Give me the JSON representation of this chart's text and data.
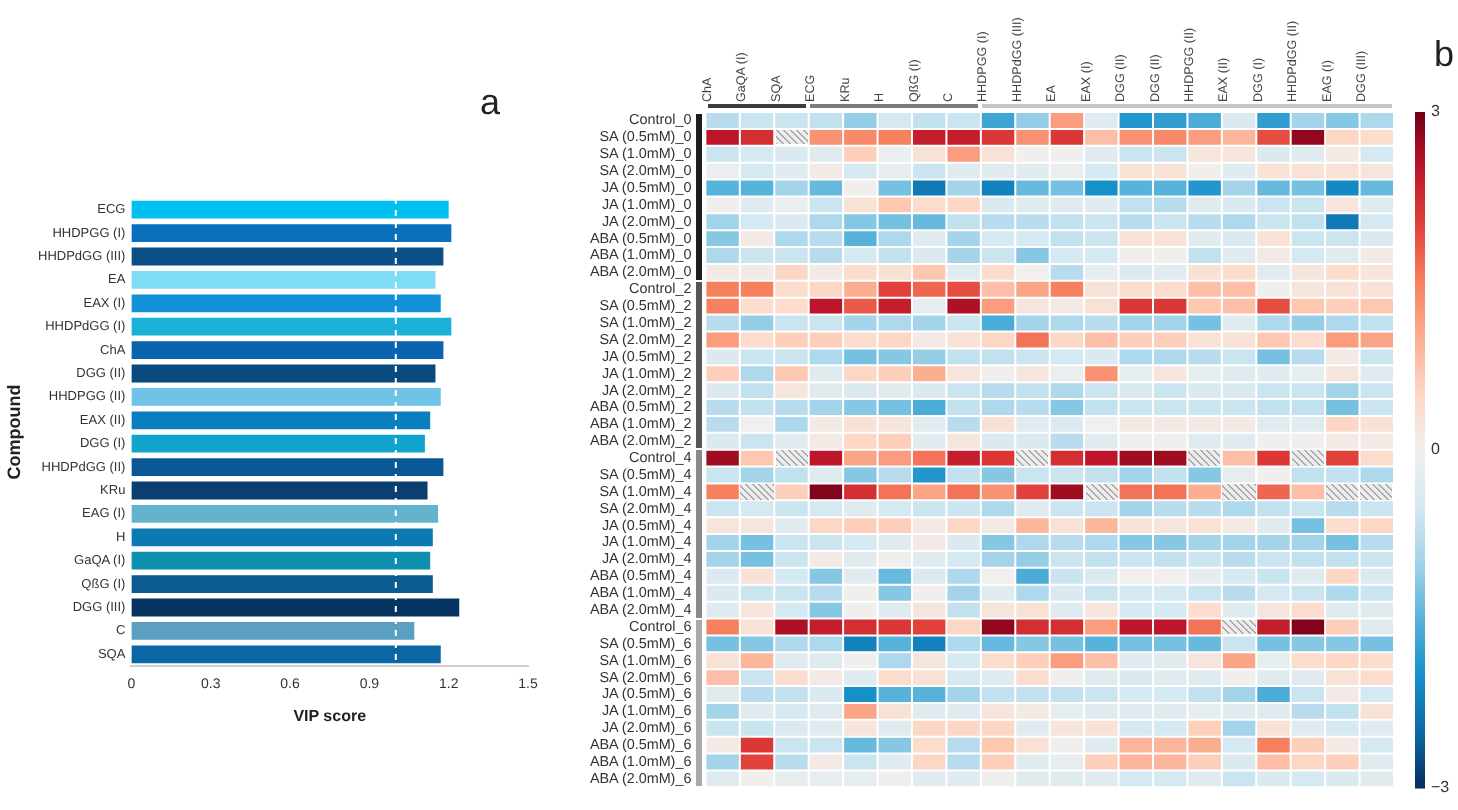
{
  "chart_data": [
    {
      "type": "bar",
      "orientation": "horizontal",
      "annotations": [
        "a"
      ],
      "xlabel": "VIP score",
      "ylabel": "Compound",
      "categories": [
        "ECG",
        "HHDPGG (I)",
        "HHDPdGG (III)",
        "EA",
        "EAX (I)",
        "HHDPdGG (I)",
        "ChA",
        "DGG (II)",
        "HHDPGG (II)",
        "EAX (II)",
        "DGG (I)",
        "HHDPdGG (II)",
        "KRu",
        "EAG (I)",
        "H",
        "GaQA (I)",
        "QßG (I)",
        "DGG (III)",
        "C",
        "SQA"
      ],
      "values": [
        1.2,
        1.21,
        1.18,
        1.15,
        1.17,
        1.21,
        1.18,
        1.15,
        1.17,
        1.13,
        1.11,
        1.18,
        1.12,
        1.16,
        1.14,
        1.13,
        1.14,
        1.24,
        1.07,
        1.17
      ],
      "colors": [
        "#00c0ef",
        "#0a6fbd",
        "#0b4f86",
        "#7fdcf5",
        "#1290d8",
        "#1ab0d8",
        "#0a63ad",
        "#0a4a7e",
        "#6fc3e6",
        "#0a7fc0",
        "#11a3cc",
        "#0a5798",
        "#0b3f72",
        "#64b3cc",
        "#0c79b3",
        "#0e8fb0",
        "#0b5a92",
        "#063461",
        "#5b9fc3",
        "#0b66a6"
      ],
      "xlim": [
        0,
        1.5
      ],
      "xticks": [
        0,
        0.3,
        0.6,
        0.9,
        1.2,
        1.5
      ],
      "ref_lines": [
        {
          "axis": "x",
          "value": 1.0,
          "color": "#ffffff",
          "line_style": "dashed"
        }
      ]
    },
    {
      "type": "heatmap",
      "annotations": [
        "b"
      ],
      "categories": [
        "ChA",
        "GaQA (I)",
        "SQA",
        "ECG",
        "KRu",
        "H",
        "QßG (I)",
        "C",
        "HHDPGG (I)",
        "HHDPdGG (III)",
        "EA",
        "EAX (I)",
        "DGG (II)",
        "DGG (II)",
        "HHDPGG (II)",
        "EAX (II)",
        "DGG (I)",
        "HHDPdGG (II)",
        "EAG (I)",
        "DGG (III)"
      ],
      "y_categories": [
        "Control_0",
        "SA (0.5mM)_0",
        "SA (1.0mM)_0",
        "SA (2.0mM)_0",
        "JA (0.5mM)_0",
        "JA (1.0mM)_0",
        "JA (2.0mM)_0",
        "ABA (0.5mM)_0",
        "ABA (1.0mM)_0",
        "ABA (2.0mM)_0",
        "Control_2",
        "SA (0.5mM)_2",
        "SA (1.0mM)_2",
        "SA (2.0mM)_2",
        "JA (0.5mM)_2",
        "JA (1.0mM)_2",
        "JA (2.0mM)_2",
        "ABA (0.5mM)_2",
        "ABA (1.0mM)_2",
        "ABA (2.0mM)_2",
        "Control_4",
        "SA (0.5mM)_4",
        "SA (1.0mM)_4",
        "SA (2.0mM)_4",
        "JA (0.5mM)_4",
        "JA (1.0mM)_4",
        "JA (2.0mM)_4",
        "ABA (0.5mM)_4",
        "ABA (1.0mM)_4",
        "ABA (2.0mM)_4",
        "Control_6",
        "SA (0.5mM)_6",
        "SA (1.0mM)_6",
        "SA (2.0mM)_6",
        "JA (0.5mM)_6",
        "JA (1.0mM)_6",
        "JA (2.0mM)_6",
        "ABA (0.5mM)_6",
        "ABA (1.0mM)_6",
        "ABA (2.0mM)_6"
      ],
      "cells": [
        [
          -0.8,
          -0.6,
          -0.6,
          -0.7,
          -1.1,
          -0.5,
          -0.7,
          -0.6,
          -1.7,
          -1.1,
          1.2,
          -0.3,
          -1.9,
          -1.8,
          -1.6,
          -0.4,
          -1.8,
          -1.0,
          -1.2,
          -0.9
        ],
        [
          2.5,
          2.2,
          null,
          1.3,
          1.4,
          1.5,
          2.4,
          2.4,
          2.1,
          1.3,
          2.1,
          0.8,
          1.3,
          1.4,
          1.2,
          0.9,
          1.9,
          2.8,
          0.5,
          0.4
        ],
        [
          -0.6,
          -0.5,
          -0.4,
          -0.3,
          0.6,
          -0.1,
          0.3,
          1.2,
          0.3,
          0,
          0,
          -0.3,
          -0.6,
          -0.6,
          0.2,
          0.2,
          -0.4,
          -0.3,
          0.1,
          -0.5
        ],
        [
          -0.1,
          -0.5,
          -0.3,
          0.1,
          -0.5,
          -0.2,
          -0.6,
          -0.3,
          -0.3,
          -0.3,
          -0.1,
          -0.5,
          0.3,
          0.3,
          0,
          -0.3,
          0.3,
          0.3,
          0.3,
          0.2
        ],
        [
          -1.5,
          -1.5,
          -1.0,
          -1.4,
          0,
          -1.3,
          -2.3,
          -1.0,
          -2.2,
          -1.4,
          -1.3,
          -2.0,
          -1.5,
          -1.5,
          -1.9,
          -1.0,
          -1.4,
          -1.3,
          -2.1,
          -1.4
        ],
        [
          0,
          -0.3,
          -0.1,
          -0.6,
          0.3,
          0.7,
          0.4,
          0.5,
          -0.4,
          -0.3,
          -0.3,
          -0.3,
          -0.7,
          -0.8,
          -0.3,
          -0.4,
          -0.6,
          -0.6,
          0.2,
          -0.3
        ],
        [
          -1.0,
          -0.5,
          -0.4,
          -0.9,
          -1.2,
          -1.3,
          -1.4,
          -0.7,
          -0.8,
          -0.8,
          -0.7,
          -0.6,
          -0.8,
          -0.6,
          -0.8,
          -0.9,
          -0.6,
          -0.7,
          -2.3,
          -0.5
        ],
        [
          -1.2,
          0.1,
          -0.9,
          -0.8,
          -1.5,
          -0.9,
          -0.3,
          -1.0,
          -0.5,
          -0.5,
          -0.7,
          -0.6,
          0.3,
          0.3,
          -0.3,
          -0.4,
          0.3,
          -0.6,
          -0.6,
          -0.4
        ],
        [
          -0.9,
          -0.6,
          -0.6,
          -0.8,
          -0.5,
          -0.7,
          -0.4,
          -1.0,
          -0.6,
          -1.2,
          -0.5,
          -0.5,
          0,
          0,
          -0.7,
          -0.3,
          0.1,
          -0.5,
          -0.3,
          0.1
        ],
        [
          0.1,
          0.1,
          0.5,
          0.1,
          0.4,
          0.3,
          0.7,
          -0.3,
          0.4,
          0,
          -0.8,
          -0.2,
          -0.4,
          -0.3,
          0.3,
          0.4,
          -0.3,
          0.2,
          0.4,
          0.2
        ],
        [
          1.5,
          1.5,
          0.4,
          0.5,
          1.0,
          2.0,
          1.7,
          1.9,
          0.8,
          1.1,
          1.5,
          0.3,
          0.4,
          0.4,
          0.8,
          0.8,
          0,
          0.2,
          0.3,
          0.3
        ],
        [
          1.5,
          0.4,
          0.4,
          2.5,
          1.8,
          2.4,
          -0.2,
          2.6,
          1.2,
          0.2,
          0.1,
          0.3,
          2.1,
          2.1,
          0.7,
          0.8,
          1.9,
          0.7,
          0.6,
          0.7
        ],
        [
          -0.8,
          -1.1,
          -0.6,
          -0.6,
          -1.0,
          -0.9,
          -1.0,
          -0.6,
          -1.6,
          -1.0,
          -0.9,
          -0.8,
          -1.0,
          -1.0,
          -1.3,
          -0.3,
          -0.9,
          -1.1,
          -0.9,
          -0.7
        ],
        [
          1.2,
          0.4,
          0.6,
          0.6,
          0.4,
          0.5,
          0.1,
          0.3,
          0.5,
          1.6,
          0.5,
          0.8,
          0.6,
          0.6,
          0.3,
          0.3,
          0.7,
          0.4,
          1.2,
          1.1
        ],
        [
          -0.4,
          -0.6,
          -0.6,
          -0.9,
          -1.3,
          -1.2,
          -1.1,
          -0.7,
          -0.7,
          -0.6,
          -0.5,
          -0.4,
          -0.9,
          -0.9,
          -0.8,
          -0.6,
          -1.3,
          -0.8,
          0.1,
          -0.6
        ],
        [
          0.6,
          -0.9,
          0.7,
          -0.3,
          0.5,
          0.6,
          1.0,
          0.2,
          0,
          0.2,
          -0.1,
          1.3,
          -0.2,
          0.2,
          -0.2,
          -0.3,
          -0.3,
          -0.2,
          0.2,
          -0.3
        ],
        [
          -0.4,
          -0.7,
          0.2,
          -0.3,
          -0.4,
          -0.3,
          -0.4,
          -0.6,
          -0.8,
          -0.7,
          -0.9,
          -0.6,
          -0.4,
          -0.6,
          -0.4,
          -0.4,
          -0.6,
          -0.6,
          -1.0,
          -0.6
        ],
        [
          -0.8,
          -0.7,
          -0.8,
          -1.0,
          -1.2,
          -1.3,
          -1.6,
          -0.7,
          -0.9,
          -0.8,
          -1.2,
          -0.7,
          -0.6,
          -0.6,
          -0.6,
          -0.6,
          -0.7,
          -0.7,
          -1.3,
          -0.6
        ],
        [
          -0.8,
          0,
          -0.9,
          0.1,
          0.3,
          0.2,
          -0.3,
          -0.8,
          0.3,
          -0.3,
          -0.4,
          0,
          0.1,
          0.1,
          0.1,
          0.1,
          -0.3,
          -0.3,
          0.5,
          0.3
        ],
        [
          -0.4,
          -0.6,
          -0.3,
          0.1,
          0.5,
          0.6,
          -0.3,
          0.2,
          -0.4,
          -0.4,
          -0.8,
          -0.3,
          0,
          0,
          -0.3,
          -0.3,
          0,
          0,
          0.1,
          0.1
        ],
        [
          2.7,
          0.7,
          null,
          2.5,
          1.1,
          1.2,
          1.6,
          2.4,
          2.1,
          null,
          2.2,
          2.5,
          2.7,
          2.7,
          null,
          0.8,
          2.1,
          null,
          2.0,
          0.4
        ],
        [
          -0.6,
          -1.0,
          -0.7,
          -0.3,
          -1.2,
          -0.8,
          -1.9,
          -0.7,
          -1.2,
          -0.6,
          -0.6,
          -0.7,
          -1.0,
          -0.7,
          -1.2,
          -0.2,
          0,
          -0.7,
          -0.7,
          -0.9
        ],
        [
          1.5,
          null,
          0.6,
          2.9,
          2.2,
          1.6,
          1.1,
          1.6,
          1.3,
          2.0,
          2.7,
          null,
          1.6,
          1.6,
          1.0,
          null,
          1.7,
          0.8,
          null,
          null
        ],
        [
          -0.6,
          -0.5,
          -0.6,
          -0.5,
          -0.3,
          -0.5,
          -0.6,
          -0.6,
          -0.9,
          -0.3,
          -0.6,
          -0.6,
          -1.0,
          -0.8,
          -0.8,
          -0.9,
          -0.7,
          -0.6,
          -0.8,
          -0.6
        ],
        [
          0.2,
          0.2,
          -0.3,
          0.5,
          0.6,
          0.6,
          0.1,
          0.5,
          0.1,
          0.9,
          0.3,
          0.9,
          0.3,
          0.2,
          0.3,
          0.1,
          -0.3,
          -1.3,
          0.4,
          0.5
        ],
        [
          -1.0,
          -1.3,
          -0.6,
          -0.6,
          -0.5,
          -0.3,
          0.1,
          -0.4,
          -1.2,
          -0.9,
          -0.8,
          -0.9,
          -1.2,
          -1.2,
          -1.0,
          -1.0,
          -1.0,
          -1.0,
          -1.3,
          -0.8
        ],
        [
          -1.0,
          -1.3,
          -0.6,
          0.1,
          -0.3,
          0,
          -0.3,
          -0.5,
          -1.0,
          -1.1,
          -0.6,
          -0.7,
          -0.6,
          -0.7,
          -0.6,
          -0.8,
          -0.6,
          -0.7,
          -0.7,
          -0.6
        ],
        [
          -0.4,
          0.3,
          -0.5,
          -1.2,
          -0.3,
          -1.4,
          -0.4,
          -0.9,
          0,
          -1.6,
          -0.6,
          -0.4,
          0,
          0,
          -0.2,
          -0.5,
          -0.6,
          -0.3,
          0.5,
          -0.4
        ],
        [
          -0.4,
          -0.6,
          -0.6,
          -0.8,
          0,
          -1.2,
          0,
          -1.0,
          -0.3,
          -0.9,
          -0.4,
          -0.6,
          -0.5,
          -0.5,
          -0.6,
          -0.8,
          -0.5,
          -0.6,
          -0.9,
          -0.6
        ],
        [
          -0.3,
          0.2,
          -0.5,
          -1.2,
          0,
          -0.3,
          0.2,
          -0.7,
          0.2,
          0.3,
          -0.3,
          0.2,
          -0.5,
          -0.5,
          0.4,
          -0.3,
          0.2,
          0.4,
          -0.3,
          -0.3
        ],
        [
          1.5,
          0.3,
          2.6,
          2.4,
          2.2,
          2.1,
          2.0,
          0.5,
          2.8,
          2.2,
          2.2,
          1.2,
          2.5,
          2.5,
          1.6,
          null,
          2.4,
          2.9,
          0.6,
          -0.3
        ],
        [
          -1.3,
          -1.2,
          -0.9,
          -0.9,
          -2.2,
          -1.5,
          -2.2,
          -0.9,
          -1.4,
          -1.2,
          -1.3,
          -1.5,
          -1.3,
          -1.3,
          -1.4,
          -0.6,
          -1.3,
          -1.2,
          -1.2,
          -1.3
        ],
        [
          0.3,
          0.9,
          -0.3,
          -0.3,
          0,
          -0.9,
          0.2,
          -0.5,
          0.4,
          0.6,
          1.2,
          0.8,
          -0.3,
          -0.3,
          0.2,
          1.1,
          -0.2,
          0.4,
          0.5,
          0.4
        ],
        [
          0.8,
          -0.6,
          0.4,
          0.1,
          -0.3,
          0.4,
          0.3,
          -0.5,
          -0.3,
          0.4,
          0,
          -0.3,
          -0.4,
          -0.3,
          -0.3,
          0,
          -0.3,
          -0.3,
          0.3,
          0.4
        ],
        [
          -0.3,
          -0.8,
          -0.7,
          -0.4,
          -2.0,
          -1.5,
          -1.5,
          -1.0,
          -0.7,
          -0.7,
          -0.7,
          -0.6,
          -0.5,
          -0.5,
          -0.7,
          -1.0,
          -1.6,
          -0.6,
          0.1,
          -0.5
        ],
        [
          -1.0,
          -0.3,
          -0.5,
          -0.3,
          1.1,
          0.3,
          -0.3,
          -0.3,
          0.2,
          0.1,
          -0.2,
          -0.3,
          -0.3,
          -0.3,
          -0.2,
          -0.3,
          -0.3,
          -0.8,
          -0.7,
          0.3
        ],
        [
          -0.6,
          -0.6,
          -0.4,
          -0.3,
          0.2,
          -0.3,
          0.5,
          0.5,
          0.5,
          -0.3,
          0.2,
          0.3,
          -0.5,
          -0.5,
          0.6,
          -1.0,
          0.3,
          -0.3,
          -0.5,
          -0.3
        ],
        [
          0.1,
          2.1,
          -0.6,
          -0.6,
          -1.4,
          -1.2,
          0.4,
          -0.8,
          0.7,
          0.3,
          0,
          -0.3,
          0.9,
          0.9,
          1.0,
          -0.5,
          1.5,
          0.6,
          0.1,
          -0.5
        ],
        [
          -1.0,
          2.0,
          -0.8,
          0.1,
          -0.6,
          -0.3,
          0.5,
          -0.8,
          0.6,
          -0.3,
          -0.2,
          0.6,
          0.9,
          0.9,
          0.6,
          -0.4,
          0.8,
          0.5,
          0.6,
          -0.3
        ],
        [
          -0.3,
          0,
          -0.2,
          -0.2,
          -0.2,
          0,
          -0.3,
          -0.3,
          0,
          -0.3,
          -0.3,
          -0.3,
          -0.5,
          -0.5,
          -0.3,
          -0.6,
          -0.4,
          -0.5,
          -0.4,
          -0.3
        ]
      ],
      "clim": [
        -3,
        3
      ],
      "cticks": [
        3,
        0,
        {
          "value": -3,
          "label": "−3"
        }
      ]
    }
  ]
}
